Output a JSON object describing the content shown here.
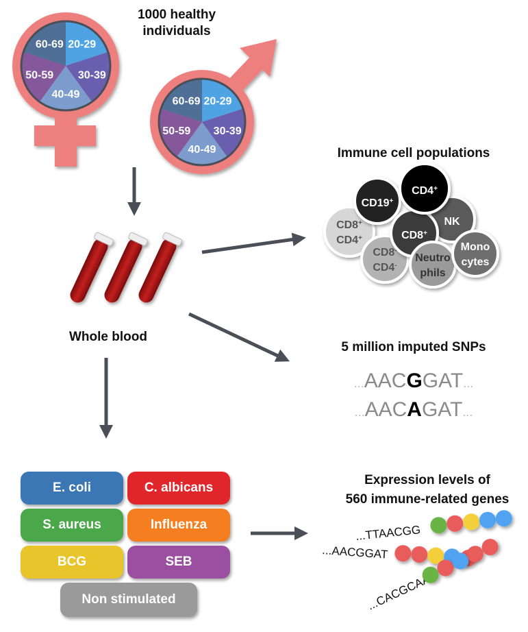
{
  "title": "1000 healthy individuals",
  "title_line1": "1000 healthy",
  "title_line2": "individuals",
  "age_groups": [
    {
      "label": "20-29",
      "color": "#4fa3e3"
    },
    {
      "label": "30-39",
      "color": "#6a5fae"
    },
    {
      "label": "40-49",
      "color": "#7b9ccc"
    },
    {
      "label": "50-59",
      "color": "#84589a"
    },
    {
      "label": "60-69",
      "color": "#4f6f96"
    }
  ],
  "symbol_color": "#ee7f7f",
  "arrow_color": "#4a4f57",
  "whole_blood": "Whole blood",
  "immune_title": "Immune cell populations",
  "cells": [
    {
      "l1": "CD8",
      "s1": "+",
      "l2": "CD4",
      "s2": "+",
      "fill": "#d6d6d6",
      "text": "#555"
    },
    {
      "l1": "CD8",
      "s1": "-",
      "l2": "CD4",
      "s2": "-",
      "fill": "#b3b3b3",
      "text": "#555"
    },
    {
      "l1": "NK",
      "fill": "#5a5a5a",
      "text": "#fff"
    },
    {
      "l1": "CD19",
      "s1": "+",
      "fill": "#222",
      "text": "#fff"
    },
    {
      "l1": "CD8",
      "s1": "+",
      "fill": "#3a3a3a",
      "text": "#fff"
    },
    {
      "l1": "Neutro",
      "l2": "phils",
      "fill": "#9a9a9a",
      "text": "#333"
    },
    {
      "l1": "Mono",
      "l2": "cytes",
      "fill": "#6e6e6e",
      "text": "#fff"
    },
    {
      "l1": "CD4",
      "s1": "+",
      "fill": "#000",
      "text": "#fff"
    }
  ],
  "snp_title": "5 million imputed SNPs",
  "snp_rows": [
    {
      "pre": "...",
      "left": "AAC",
      "allele": "G",
      "right": "GAT",
      "post": "..."
    },
    {
      "pre": "...",
      "left": "AAC",
      "allele": "A",
      "right": "GAT",
      "post": "..."
    }
  ],
  "stimuli": [
    {
      "label": "E. coli",
      "color": "#3a77b4"
    },
    {
      "label": "C. albicans",
      "color": "#e0262a"
    },
    {
      "label": "S. aureus",
      "color": "#4aa84a"
    },
    {
      "label": "Influenza",
      "color": "#f57f20"
    },
    {
      "label": "BCG",
      "color": "#e8c52a"
    },
    {
      "label": "SEB",
      "color": "#9a4fa0"
    },
    {
      "label": "Non stimulated",
      "color": "#9a9a9a"
    }
  ],
  "expr_title_line1": "Expression levels of",
  "expr_title_line2": "560 immune-related genes",
  "genes": [
    {
      "seq": "...TTAACGG",
      "beads": [
        "#6ab445",
        "#e85c5c",
        "#f2cf3a",
        "#4fa3f0",
        "#4fa3f0"
      ]
    },
    {
      "seq": "...AACGGAT",
      "beads": [
        "#e85c5c",
        "#e85c5c",
        "#f2cf3a",
        "#4fa3f0",
        "#e85c5c"
      ]
    },
    {
      "seq": "...CACGCAA",
      "beads": [
        "#6ab445",
        "#e85c5c",
        "#4fa3f0",
        "#e85c5c",
        "#e85c5c"
      ]
    }
  ]
}
